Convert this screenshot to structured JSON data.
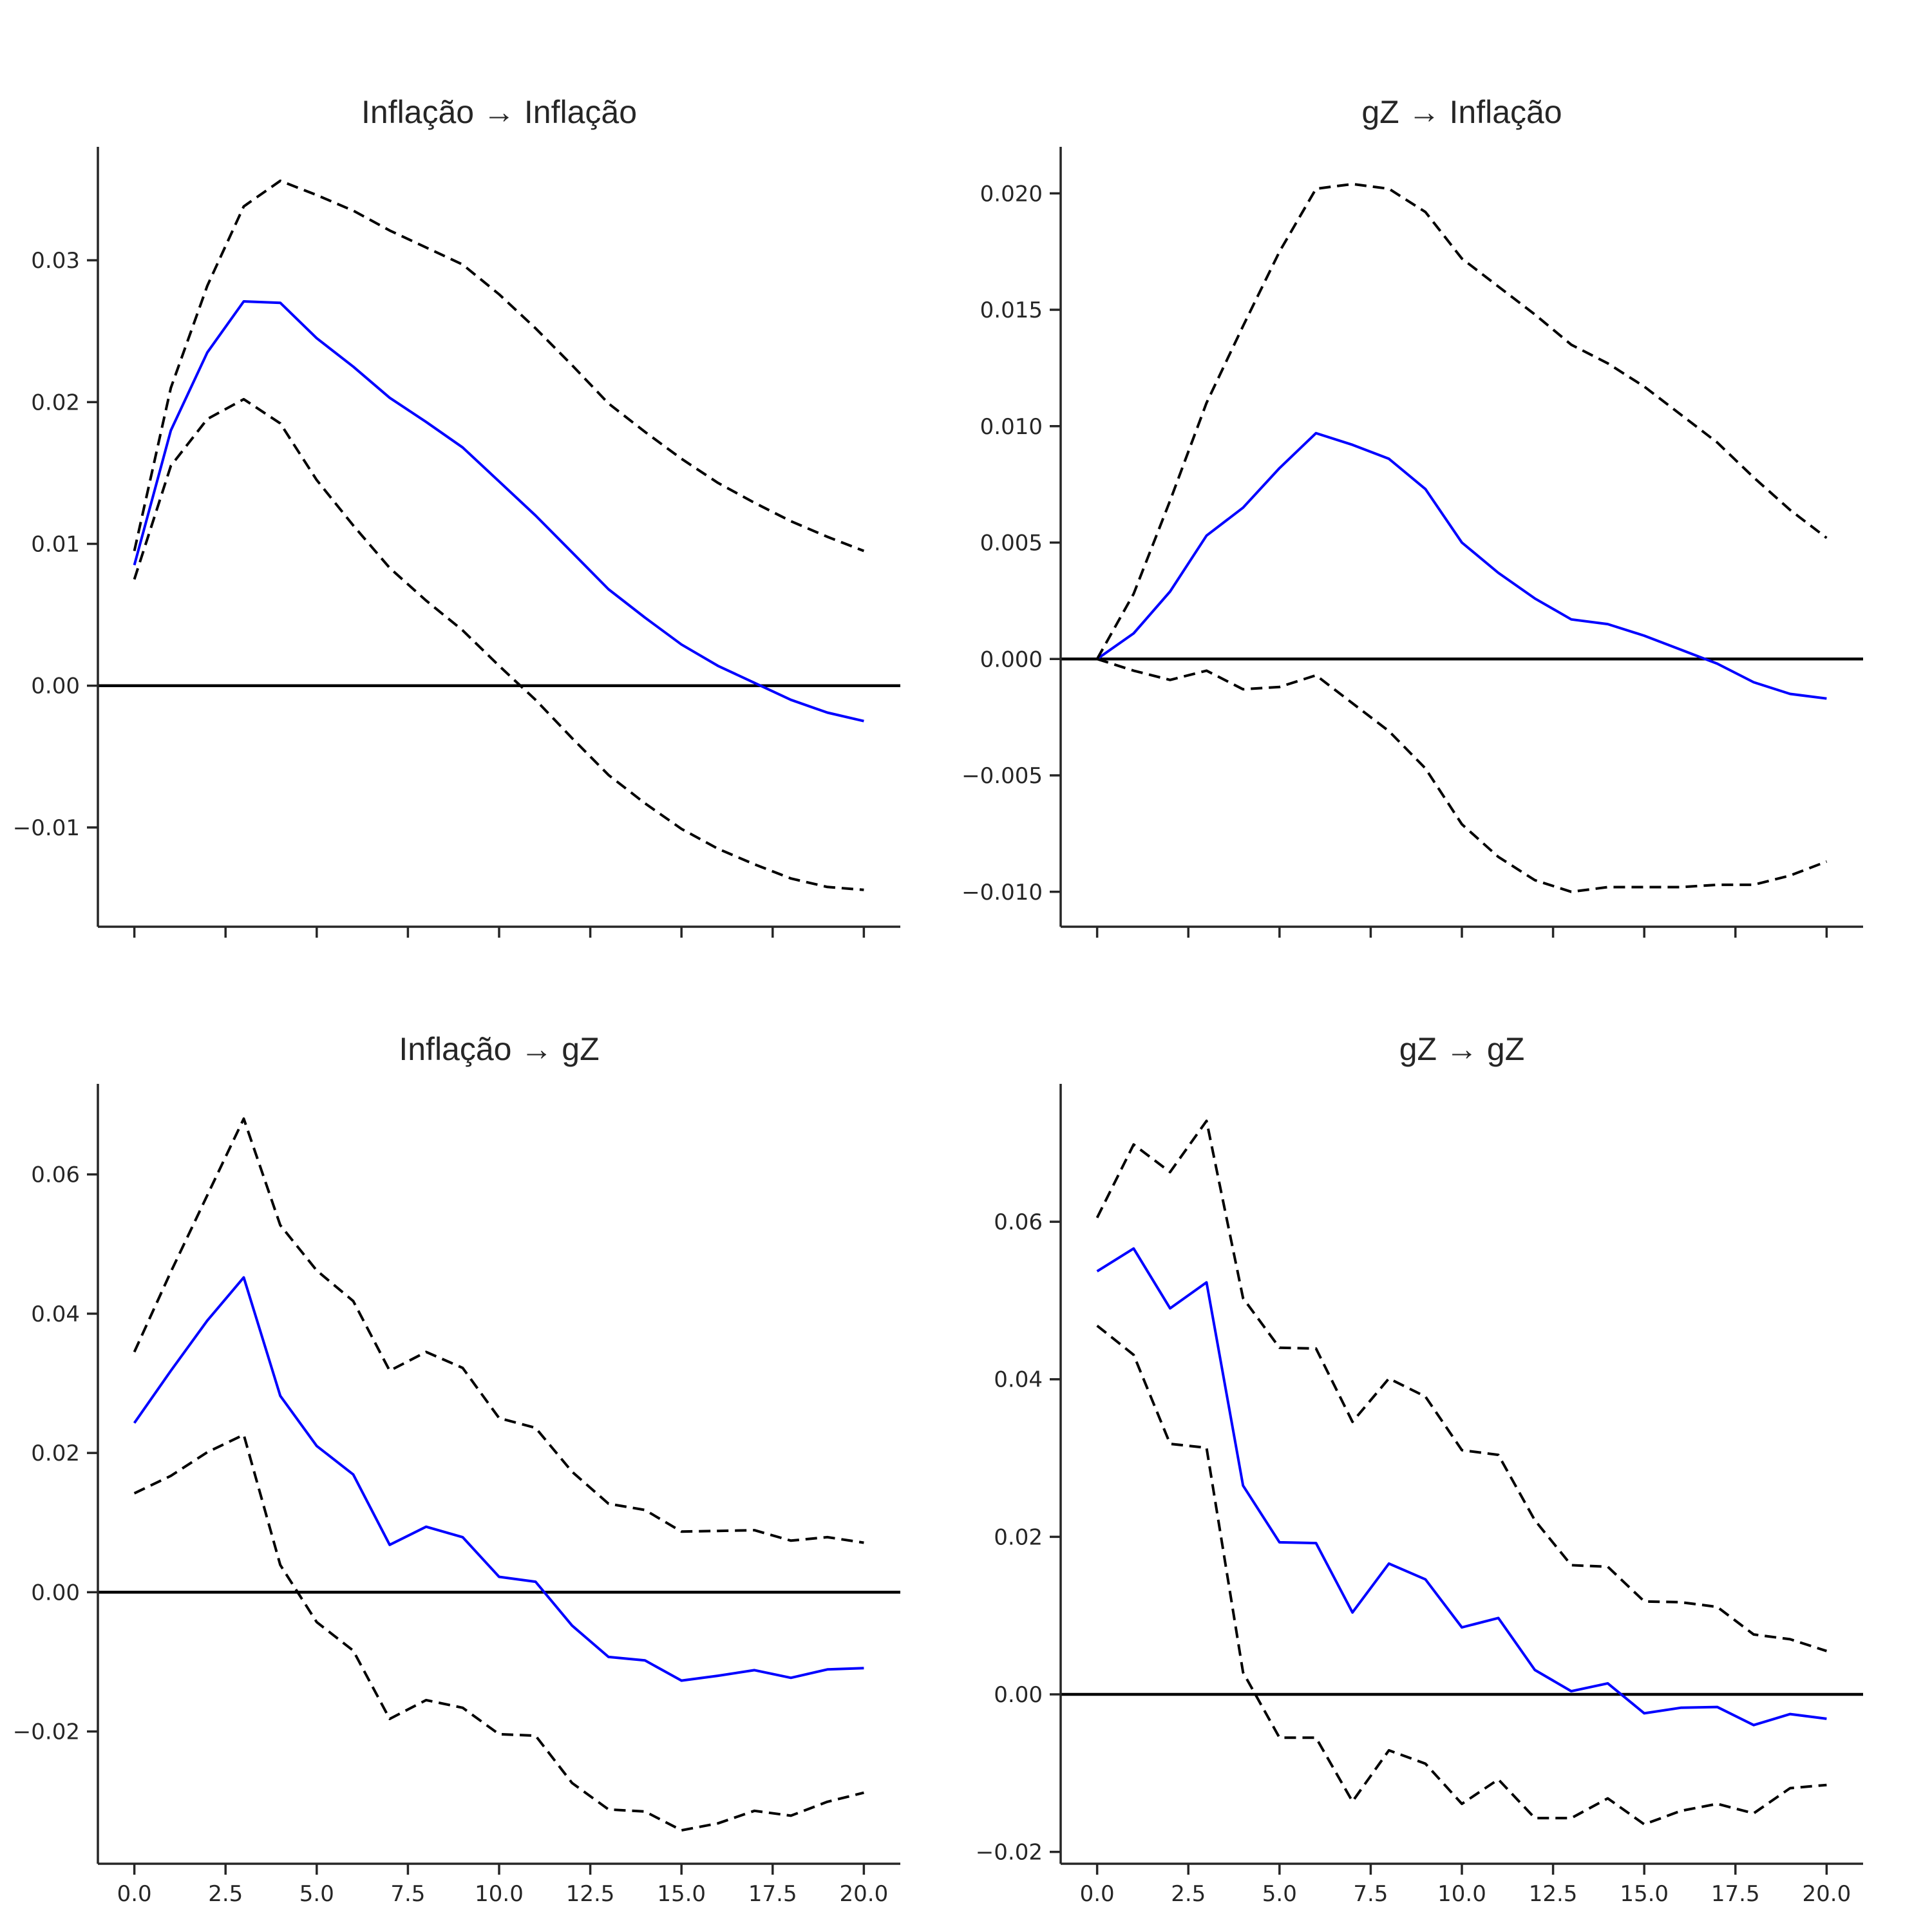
{
  "figure": {
    "colors": {
      "irf": "#0000ff",
      "bands": "#000000",
      "zero": "#000000",
      "axis": "#262626"
    }
  },
  "chart_data": [
    {
      "type": "line",
      "title": "Inflação → Inflação",
      "xlabel": "",
      "ylabel": "",
      "x": [
        0,
        1,
        2,
        3,
        4,
        5,
        6,
        7,
        8,
        9,
        10,
        11,
        12,
        13,
        14,
        15,
        16,
        17,
        18,
        19,
        20
      ],
      "xlim": [
        -1,
        21
      ],
      "ylim": [
        -0.017,
        0.038
      ],
      "xticks": [
        0,
        2.5,
        5,
        7.5,
        10,
        12.5,
        15,
        17.5,
        20
      ],
      "xtick_labels": [],
      "yticks": [
        -0.01,
        0.0,
        0.01,
        0.02,
        0.03
      ],
      "ytick_labels": [
        "−0.01",
        "0.00",
        "0.01",
        "0.02",
        "0.03"
      ],
      "series": [
        {
          "role": "irf",
          "values": [
            0.0085,
            0.018,
            0.0235,
            0.0271,
            0.027,
            0.0245,
            0.0225,
            0.0203,
            0.0186,
            0.0168,
            0.0144,
            0.012,
            0.0094,
            0.0068,
            0.0048,
            0.0029,
            0.0014,
            0.0002,
            -0.001,
            -0.0019,
            -0.0025
          ]
        },
        {
          "role": "upper",
          "values": [
            0.0095,
            0.021,
            0.0282,
            0.0338,
            0.0356,
            0.0346,
            0.0335,
            0.0321,
            0.0309,
            0.0297,
            0.0276,
            0.0252,
            0.0226,
            0.0199,
            0.0179,
            0.016,
            0.0143,
            0.0129,
            0.0116,
            0.0105,
            0.0095
          ]
        },
        {
          "role": "lower",
          "values": [
            0.0075,
            0.0155,
            0.0188,
            0.0202,
            0.0185,
            0.0145,
            0.0113,
            0.0083,
            0.006,
            0.0039,
            0.0014,
            -0.001,
            -0.0037,
            -0.0063,
            -0.0083,
            -0.0101,
            -0.0115,
            -0.0126,
            -0.0136,
            -0.0142,
            -0.0144
          ]
        }
      ]
    },
    {
      "type": "line",
      "title": "gZ → Inflação",
      "xlabel": "",
      "ylabel": "",
      "x": [
        0,
        1,
        2,
        3,
        4,
        5,
        6,
        7,
        8,
        9,
        10,
        11,
        12,
        13,
        14,
        15,
        16,
        17,
        18,
        19,
        20
      ],
      "xlim": [
        -1,
        21
      ],
      "ylim": [
        -0.0115,
        0.022
      ],
      "xticks": [
        0,
        2.5,
        5,
        7.5,
        10,
        12.5,
        15,
        17.5,
        20
      ],
      "xtick_labels": [],
      "yticks": [
        -0.01,
        -0.005,
        0.0,
        0.005,
        0.01,
        0.015,
        0.02
      ],
      "ytick_labels": [
        "−0.010",
        "−0.005",
        "0.000",
        "0.005",
        "0.010",
        "0.015",
        "0.020"
      ],
      "series": [
        {
          "role": "irf",
          "values": [
            0.0,
            0.0011,
            0.0029,
            0.0053,
            0.0065,
            0.0082,
            0.0097,
            0.0092,
            0.0086,
            0.0073,
            0.005,
            0.0037,
            0.0026,
            0.0017,
            0.0015,
            0.001,
            0.0004,
            -0.0002,
            -0.001,
            -0.0015,
            -0.0017
          ]
        },
        {
          "role": "upper",
          "values": [
            0.0,
            0.0028,
            0.0068,
            0.011,
            0.0143,
            0.0175,
            0.0202,
            0.0204,
            0.0202,
            0.0192,
            0.0172,
            0.016,
            0.0148,
            0.0135,
            0.0127,
            0.0117,
            0.0105,
            0.0093,
            0.0078,
            0.0064,
            0.0052
          ]
        },
        {
          "role": "lower",
          "values": [
            0.0,
            -0.0005,
            -0.0009,
            -0.0005,
            -0.0013,
            -0.0012,
            -0.0007,
            -0.0019,
            -0.0031,
            -0.0047,
            -0.0071,
            -0.0085,
            -0.0095,
            -0.01,
            -0.0098,
            -0.0098,
            -0.0098,
            -0.0097,
            -0.0097,
            -0.0093,
            -0.0087
          ]
        }
      ]
    },
    {
      "type": "line",
      "title": "Inflação → gZ",
      "xlabel": "",
      "ylabel": "",
      "x": [
        0,
        1,
        2,
        3,
        4,
        5,
        6,
        7,
        8,
        9,
        10,
        11,
        12,
        13,
        14,
        15,
        16,
        17,
        18,
        19,
        20
      ],
      "xlim": [
        -1,
        21
      ],
      "ylim": [
        -0.039,
        0.073
      ],
      "xticks": [
        0,
        2.5,
        5,
        7.5,
        10,
        12.5,
        15,
        17.5,
        20
      ],
      "xtick_labels": [
        "0.0",
        "2.5",
        "5.0",
        "7.5",
        "10.0",
        "12.5",
        "15.0",
        "17.5",
        "20.0"
      ],
      "yticks": [
        -0.02,
        0.0,
        0.02,
        0.04,
        0.06
      ],
      "ytick_labels": [
        "−0.02",
        "0.00",
        "0.02",
        "0.04",
        "0.06"
      ],
      "series": [
        {
          "role": "irf",
          "values": [
            0.0243,
            0.0318,
            0.039,
            0.0452,
            0.0282,
            0.021,
            0.0169,
            0.0068,
            0.0094,
            0.0079,
            0.0022,
            0.0015,
            -0.0048,
            -0.0093,
            -0.0098,
            -0.0127,
            -0.012,
            -0.0112,
            -0.0123,
            -0.0111,
            -0.0109
          ]
        },
        {
          "role": "upper",
          "values": [
            0.0345,
            0.046,
            0.057,
            0.068,
            0.0527,
            0.0462,
            0.0418,
            0.0318,
            0.0345,
            0.0322,
            0.025,
            0.0236,
            0.0173,
            0.0127,
            0.0118,
            0.0087,
            0.0088,
            0.0089,
            0.0074,
            0.0079,
            0.0071
          ]
        },
        {
          "role": "lower",
          "values": [
            0.0142,
            0.0167,
            0.0201,
            0.0226,
            0.0039,
            -0.0043,
            -0.0084,
            -0.0182,
            -0.0155,
            -0.0166,
            -0.0204,
            -0.0206,
            -0.0274,
            -0.0312,
            -0.0315,
            -0.0342,
            -0.0332,
            -0.0314,
            -0.0321,
            -0.0301,
            -0.0288
          ]
        }
      ]
    },
    {
      "type": "line",
      "title": "gZ → gZ",
      "xlabel": "",
      "ylabel": "",
      "x": [
        0,
        1,
        2,
        3,
        4,
        5,
        6,
        7,
        8,
        9,
        10,
        11,
        12,
        13,
        14,
        15,
        16,
        17,
        18,
        19,
        20
      ],
      "xlim": [
        -1,
        21
      ],
      "ylim": [
        -0.0215,
        0.0775
      ],
      "xticks": [
        0,
        2.5,
        5,
        7.5,
        10,
        12.5,
        15,
        17.5,
        20
      ],
      "xtick_labels": [
        "0.0",
        "2.5",
        "5.0",
        "7.5",
        "10.0",
        "12.5",
        "15.0",
        "17.5",
        "20.0"
      ],
      "yticks": [
        -0.02,
        0.0,
        0.02,
        0.04,
        0.06
      ],
      "ytick_labels": [
        "−0.02",
        "0.00",
        "0.02",
        "0.04",
        "0.06"
      ],
      "series": [
        {
          "role": "irf",
          "values": [
            0.0537,
            0.0566,
            0.049,
            0.0523,
            0.0265,
            0.0193,
            0.0192,
            0.0104,
            0.0166,
            0.0146,
            0.0085,
            0.0097,
            0.0031,
            0.0004,
            0.0014,
            -0.0024,
            -0.0017,
            -0.0016,
            -0.0039,
            -0.0025,
            -0.0031
          ]
        },
        {
          "role": "upper",
          "values": [
            0.0605,
            0.0698,
            0.0663,
            0.0728,
            0.0503,
            0.044,
            0.0439,
            0.0346,
            0.0401,
            0.0378,
            0.031,
            0.0304,
            0.0221,
            0.0164,
            0.0162,
            0.0118,
            0.0117,
            0.0111,
            0.0076,
            0.007,
            0.0055
          ]
        },
        {
          "role": "lower",
          "values": [
            0.0468,
            0.0431,
            0.0318,
            0.0313,
            0.0028,
            -0.0055,
            -0.0055,
            -0.0136,
            -0.0071,
            -0.0088,
            -0.0139,
            -0.0108,
            -0.0157,
            -0.0157,
            -0.0132,
            -0.0165,
            -0.0148,
            -0.0139,
            -0.0151,
            -0.0119,
            -0.0115
          ]
        }
      ]
    }
  ]
}
